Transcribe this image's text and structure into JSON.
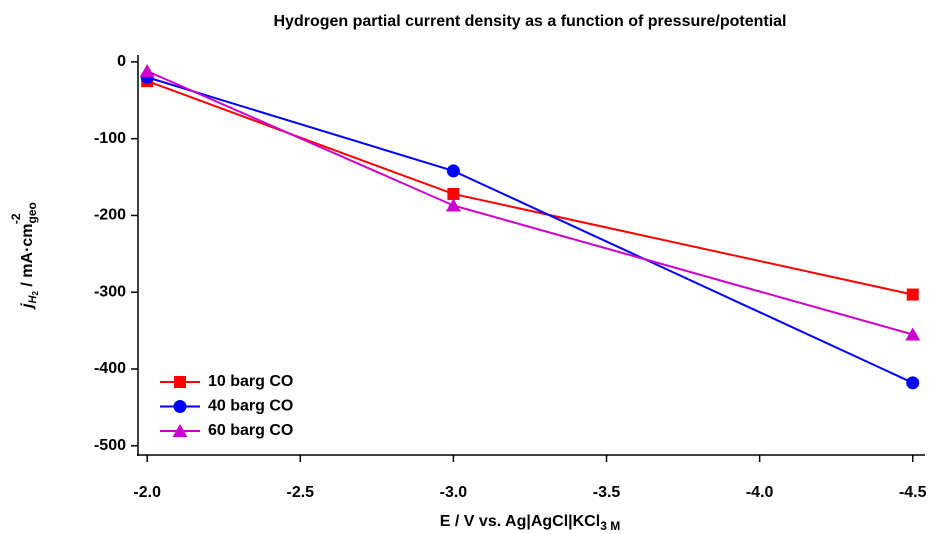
{
  "chart_data": {
    "type": "line",
    "title": "Hydrogen partial current density as a function of pressure/potential",
    "x_label": [
      "E / V vs. Ag|AgCl|KCl",
      "3 M"
    ],
    "y_label": [
      "j",
      "H",
      "2",
      " / mA·cm",
      "geo",
      "-2"
    ],
    "x": [
      -2.0,
      -3.0,
      -4.5
    ],
    "series": [
      {
        "name": "10 barg CO",
        "color": "#ff0000",
        "marker": "square",
        "values": [
          -25,
          -172,
          -303
        ]
      },
      {
        "name": "40 barg CO",
        "color": "#0000ff",
        "marker": "circle",
        "values": [
          -20,
          -142,
          -418
        ]
      },
      {
        "name": "60 barg CO",
        "color": "#cc00cc",
        "marker": "triangle",
        "values": [
          -12,
          -187,
          -355
        ]
      }
    ],
    "xlim": [
      -1.97,
      -4.54
    ],
    "xticks": [
      {
        "value": -2.0,
        "label": "-2.0"
      },
      -2.5,
      {
        "value": -3.0,
        "label": "-3.0"
      },
      -3.5,
      {
        "value": -4.0,
        "label": "-4.0"
      },
      -4.5
    ],
    "ylim": [
      -512,
      9
    ],
    "yticks": [
      0,
      -100,
      -200,
      -300,
      -400,
      -500
    ],
    "grid": false,
    "legend": "lower left"
  }
}
